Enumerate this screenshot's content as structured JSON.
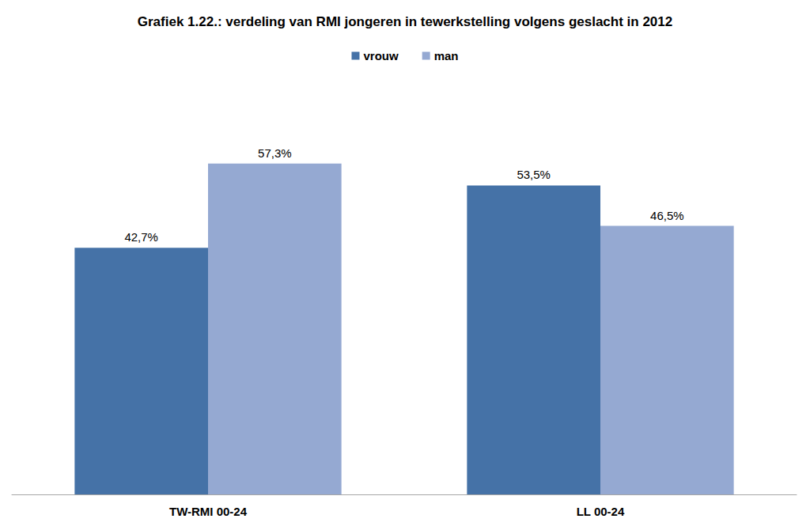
{
  "chart_data": {
    "type": "bar",
    "title": "Grafiek 1.22.: verdeling van RMI jongeren in tewerkstelling volgens geslacht in 2012",
    "categories": [
      "TW-RMI 00-24",
      "LL 00-24"
    ],
    "series": [
      {
        "name": "vrouw",
        "color": "#4572a7",
        "values": [
          42.7,
          53.5
        ],
        "value_labels": [
          "42,7%",
          "53,5%"
        ]
      },
      {
        "name": "man",
        "color": "#95a9d2",
        "values": [
          57.3,
          46.5
        ],
        "value_labels": [
          "57,3%",
          "46,5%"
        ]
      }
    ],
    "ylim": [
      0,
      70
    ],
    "grid": false,
    "legend": "top",
    "data_labels": true,
    "tick_labels": "x"
  }
}
